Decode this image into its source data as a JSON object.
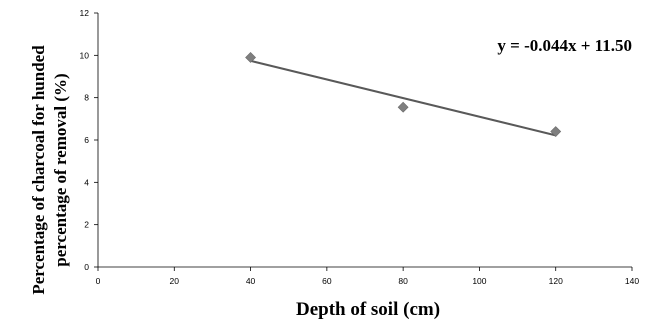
{
  "chart_data": {
    "type": "scatter",
    "title": "",
    "xlabel": "Depth of soil (cm)",
    "ylabel_line1": "Percentage of charcoal for hunded",
    "ylabel_line2": "percentage of removal (%)",
    "xlim": [
      0,
      140
    ],
    "ylim": [
      0,
      12
    ],
    "xticks": [
      "0",
      "20",
      "40",
      "60",
      "80",
      "100",
      "120",
      "140"
    ],
    "yticks": [
      "0",
      "2",
      "4",
      "6",
      "8",
      "10",
      "12"
    ],
    "grid": false,
    "points": [
      {
        "x": 40,
        "y": 9.9
      },
      {
        "x": 80,
        "y": 7.55
      },
      {
        "x": 120,
        "y": 6.4
      }
    ],
    "trendline": {
      "type": "linear",
      "slope": -0.044,
      "intercept": 11.5,
      "x_range": [
        40,
        120
      ],
      "equation": "y = -0.044x + 11.50"
    },
    "marker_color": "#7f7f7f",
    "line_color": "#595959"
  }
}
